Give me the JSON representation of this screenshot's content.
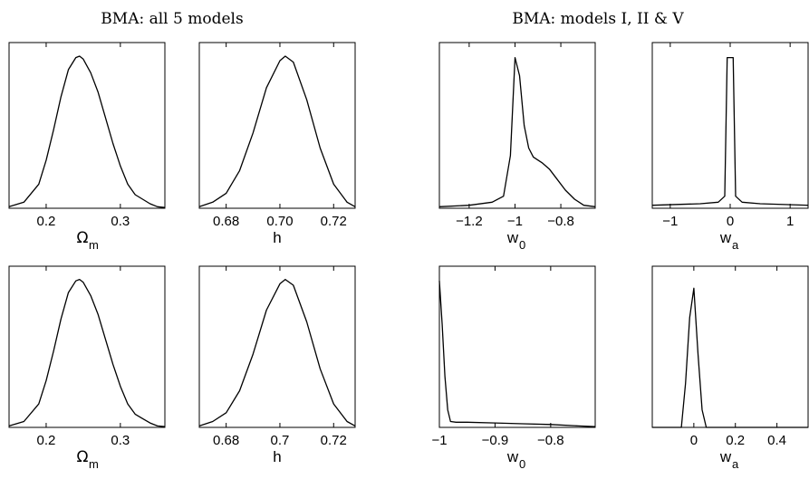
{
  "titles": {
    "left": "BMA: all 5 models",
    "right": "BMA: models I, II & V"
  },
  "chart_data": [
    {
      "type": "line",
      "group": "left",
      "xlabel": {
        "main": "Ω",
        "sub": "m"
      },
      "xlim": [
        0.15,
        0.36
      ],
      "ylim": [
        0,
        1.1
      ],
      "xticks": [
        {
          "v": 0.2,
          "t": "0.2"
        },
        {
          "v": 0.3,
          "t": "0.3"
        }
      ],
      "x": [
        0.15,
        0.17,
        0.19,
        0.2,
        0.21,
        0.22,
        0.23,
        0.24,
        0.245,
        0.25,
        0.26,
        0.27,
        0.28,
        0.29,
        0.3,
        0.31,
        0.32,
        0.33,
        0.34,
        0.35,
        0.36
      ],
      "y": [
        0.01,
        0.04,
        0.16,
        0.32,
        0.52,
        0.74,
        0.92,
        1.0,
        1.01,
        0.99,
        0.9,
        0.77,
        0.6,
        0.43,
        0.28,
        0.16,
        0.09,
        0.06,
        0.03,
        0.01,
        0.005
      ]
    },
    {
      "type": "line",
      "group": "left",
      "xlabel": {
        "main": "h",
        "sub": ""
      },
      "xlim": [
        0.67,
        0.728
      ],
      "ylim": [
        0,
        1.1
      ],
      "xticks": [
        {
          "v": 0.68,
          "t": "0.68"
        },
        {
          "v": 0.7,
          "t": "0.70"
        },
        {
          "v": 0.72,
          "t": "0.72"
        }
      ],
      "x": [
        0.67,
        0.675,
        0.68,
        0.685,
        0.69,
        0.695,
        0.7,
        0.702,
        0.705,
        0.71,
        0.715,
        0.72,
        0.725,
        0.728
      ],
      "y": [
        0.01,
        0.04,
        0.1,
        0.25,
        0.5,
        0.8,
        0.98,
        1.01,
        0.97,
        0.72,
        0.4,
        0.16,
        0.04,
        0.01
      ]
    },
    {
      "type": "line",
      "group": "left",
      "xlabel": {
        "main": "w",
        "sub": "0"
      },
      "xlim": [
        -1.33,
        -0.65
      ],
      "ylim": [
        0,
        1.1
      ],
      "xticks": [
        {
          "v": -1.2,
          "t": "−1.2"
        },
        {
          "v": -1.0,
          "t": "−1"
        },
        {
          "v": -0.8,
          "t": "−0.8"
        }
      ],
      "x": [
        -1.33,
        -1.2,
        -1.1,
        -1.05,
        -1.02,
        -1.0,
        -0.98,
        -0.96,
        -0.94,
        -0.92,
        -0.9,
        -0.88,
        -0.85,
        -0.82,
        -0.78,
        -0.74,
        -0.7,
        -0.65
      ],
      "y": [
        0.01,
        0.02,
        0.04,
        0.08,
        0.35,
        1.0,
        0.88,
        0.55,
        0.4,
        0.34,
        0.32,
        0.3,
        0.26,
        0.2,
        0.12,
        0.06,
        0.02,
        0.01
      ]
    },
    {
      "type": "line",
      "group": "left",
      "xlabel": {
        "main": "w",
        "sub": "a"
      },
      "xlim": [
        -1.3,
        1.3
      ],
      "ylim": [
        0,
        1.1
      ],
      "xticks": [
        {
          "v": -1,
          "t": "−1"
        },
        {
          "v": 0,
          "t": "0"
        },
        {
          "v": 1,
          "t": "1"
        }
      ],
      "x": [
        -1.3,
        -0.5,
        -0.2,
        -0.09,
        -0.05,
        0.05,
        0.09,
        0.2,
        0.5,
        1.3
      ],
      "y": [
        0.02,
        0.03,
        0.04,
        0.08,
        1.0,
        1.0,
        0.08,
        0.04,
        0.03,
        0.02
      ]
    },
    {
      "type": "line",
      "group": "right",
      "xlabel": {
        "main": "Ω",
        "sub": "m"
      },
      "xlim": [
        0.15,
        0.36
      ],
      "ylim": [
        0,
        1.1
      ],
      "xticks": [
        {
          "v": 0.2,
          "t": "0.2"
        },
        {
          "v": 0.3,
          "t": "0.3"
        }
      ],
      "x": [
        0.15,
        0.17,
        0.19,
        0.2,
        0.21,
        0.22,
        0.23,
        0.24,
        0.245,
        0.25,
        0.26,
        0.27,
        0.28,
        0.29,
        0.3,
        0.31,
        0.32,
        0.33,
        0.34,
        0.35,
        0.36
      ],
      "y": [
        0.01,
        0.04,
        0.16,
        0.32,
        0.52,
        0.74,
        0.92,
        1.0,
        1.01,
        0.99,
        0.9,
        0.77,
        0.6,
        0.43,
        0.28,
        0.16,
        0.09,
        0.06,
        0.03,
        0.01,
        0.005
      ]
    },
    {
      "type": "line",
      "group": "right",
      "xlabel": {
        "main": "h",
        "sub": ""
      },
      "xlim": [
        0.67,
        0.728
      ],
      "ylim": [
        0,
        1.1
      ],
      "xticks": [
        {
          "v": 0.68,
          "t": "0.68"
        },
        {
          "v": 0.7,
          "t": "0.7"
        },
        {
          "v": 0.72,
          "t": "0.72"
        }
      ],
      "x": [
        0.67,
        0.675,
        0.68,
        0.685,
        0.69,
        0.695,
        0.7,
        0.702,
        0.705,
        0.71,
        0.715,
        0.72,
        0.725,
        0.728
      ],
      "y": [
        0.01,
        0.04,
        0.1,
        0.25,
        0.5,
        0.8,
        0.98,
        1.01,
        0.97,
        0.72,
        0.4,
        0.16,
        0.04,
        0.01
      ]
    },
    {
      "type": "line",
      "group": "right",
      "xlabel": {
        "main": "w",
        "sub": "0"
      },
      "xlim": [
        -1.0,
        -0.72
      ],
      "ylim": [
        0,
        1.1
      ],
      "xticks": [
        {
          "v": -1.0,
          "t": "−1"
        },
        {
          "v": -0.9,
          "t": "−0.9"
        },
        {
          "v": -0.8,
          "t": "−0.8"
        }
      ],
      "x": [
        -1.0,
        -0.995,
        -0.99,
        -0.985,
        -0.98,
        -0.97,
        -0.95,
        -0.9,
        -0.85,
        -0.8,
        -0.75,
        -0.72
      ],
      "y": [
        1.0,
        0.7,
        0.35,
        0.12,
        0.04,
        0.035,
        0.035,
        0.03,
        0.025,
        0.02,
        0.01,
        0.005
      ]
    },
    {
      "type": "line",
      "group": "right",
      "xlabel": {
        "main": "w",
        "sub": "a"
      },
      "xlim": [
        -0.2,
        0.55
      ],
      "ylim": [
        0,
        1.1
      ],
      "xticks": [
        {
          "v": 0,
          "t": "0"
        },
        {
          "v": 0.2,
          "t": "0.2"
        },
        {
          "v": 0.4,
          "t": "0.4"
        }
      ],
      "x": [
        -0.2,
        -0.06,
        -0.04,
        -0.02,
        0.0,
        0.02,
        0.04,
        0.06,
        0.55
      ],
      "y": [
        0.0,
        0.0,
        0.3,
        0.75,
        0.95,
        0.5,
        0.12,
        0.0,
        0.0
      ]
    }
  ]
}
